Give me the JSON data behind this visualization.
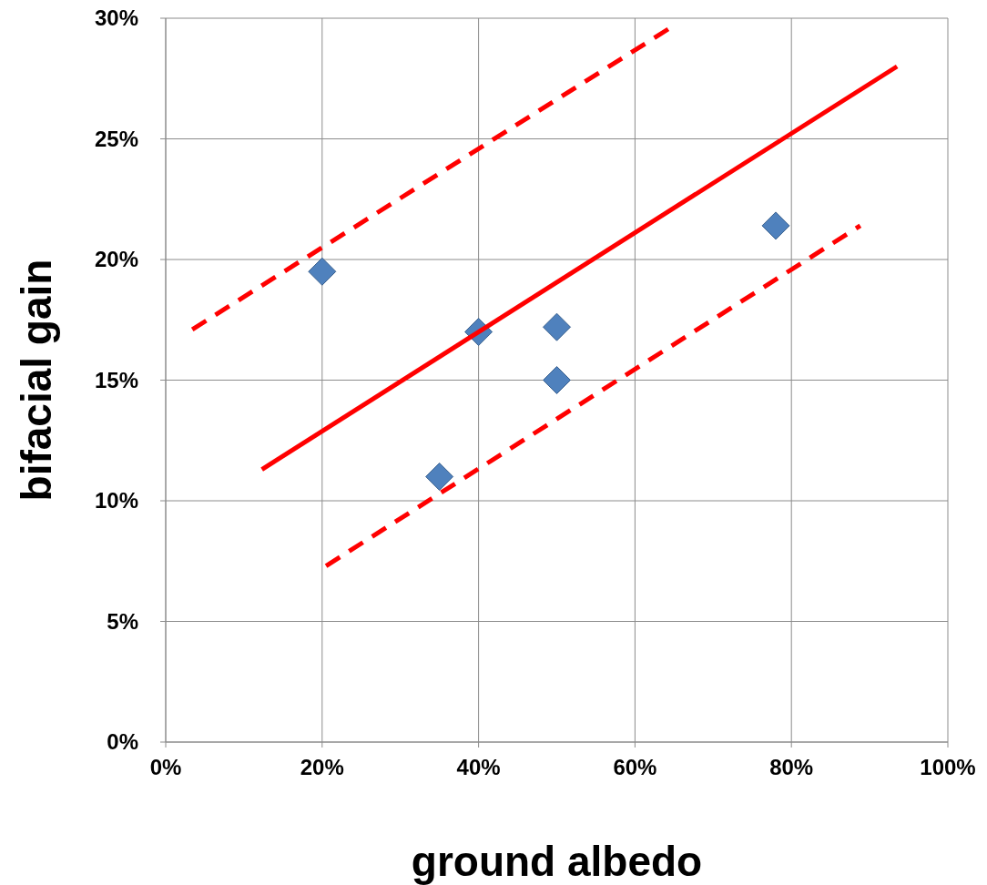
{
  "chart_data": {
    "type": "scatter",
    "xlabel": "ground albedo",
    "ylabel": "bifacial gain",
    "xlim": [
      0,
      100
    ],
    "ylim": [
      0,
      30
    ],
    "xticks": [
      {
        "value": 0,
        "label": "0%"
      },
      {
        "value": 20,
        "label": "20%"
      },
      {
        "value": 40,
        "label": "40%"
      },
      {
        "value": 60,
        "label": "60%"
      },
      {
        "value": 80,
        "label": "80%"
      },
      {
        "value": 100,
        "label": "100%"
      }
    ],
    "yticks": [
      {
        "value": 0,
        "label": "0%"
      },
      {
        "value": 5,
        "label": "5%"
      },
      {
        "value": 10,
        "label": "10%"
      },
      {
        "value": 15,
        "label": "15%"
      },
      {
        "value": 20,
        "label": "20%"
      },
      {
        "value": 25,
        "label": "25%"
      },
      {
        "value": 30,
        "label": "30%"
      }
    ],
    "grid": true,
    "series": [
      {
        "type": "scatter",
        "color": "#4f81bd",
        "marker": "diamond",
        "x": [
          20,
          40,
          50,
          50,
          35,
          78
        ],
        "values": [
          19.5,
          17,
          17.2,
          15,
          11,
          21.4
        ]
      },
      {
        "type": "line",
        "color": "#ff0000",
        "line_style": "solid",
        "x": [
          12.3,
          93.5
        ],
        "values": [
          11.3,
          28
        ]
      },
      {
        "type": "line",
        "color": "#ff0000",
        "line_style": "dashed",
        "x": [
          3.4,
          64.5
        ],
        "values": [
          17.1,
          29.6
        ]
      },
      {
        "type": "line",
        "color": "#ff0000",
        "line_style": "dashed",
        "x": [
          20.5,
          88.8
        ],
        "values": [
          7.3,
          21.4
        ]
      }
    ]
  }
}
